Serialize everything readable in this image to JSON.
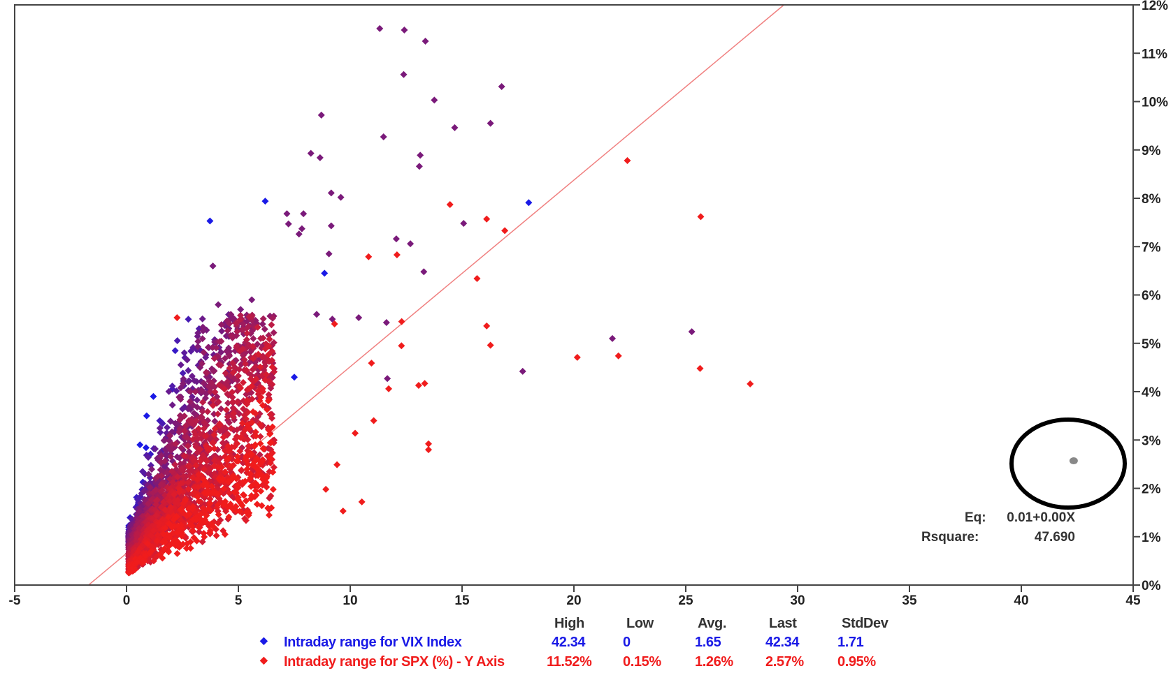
{
  "chart_data": {
    "type": "scatter",
    "title": "",
    "xlabel": "",
    "ylabel": "",
    "xlim": [
      -5,
      45
    ],
    "ylim": [
      0,
      12
    ],
    "x_ticks": [
      "-5",
      "0",
      "5",
      "10",
      "15",
      "20",
      "25",
      "30",
      "35",
      "40",
      "45"
    ],
    "y_ticks": [
      "0%",
      "1%",
      "2%",
      "3%",
      "4%",
      "5%",
      "6%",
      "7%",
      "8%",
      "9%",
      "10%",
      "11%",
      "12%"
    ],
    "y_axis_side": "right",
    "grid": false,
    "colors": {
      "vix": "#1a1ae6",
      "mixed": "#7a1a7a",
      "spx": "#f01c1c",
      "regression": "#f08080",
      "last_point": "#888888",
      "highlight_circle": "#000000"
    },
    "series": [
      {
        "name": "Intraday range for VIX Index",
        "color": "#1a1ae6",
        "points": [
          [
            6.2,
            7.94
          ],
          [
            17.98,
            7.91
          ],
          [
            3.73,
            7.53
          ],
          [
            8.85,
            6.45
          ],
          [
            7.5,
            4.3
          ],
          [
            0.9,
            3.5
          ],
          [
            1.2,
            3.9
          ],
          [
            0.6,
            2.9
          ]
        ]
      },
      {
        "name": "mixed",
        "color": "#7a1a7a",
        "points": [
          [
            11.32,
            11.51
          ],
          [
            12.42,
            11.48
          ],
          [
            13.36,
            11.25
          ],
          [
            12.39,
            10.56
          ],
          [
            13.76,
            10.03
          ],
          [
            16.77,
            10.31
          ],
          [
            8.71,
            9.72
          ],
          [
            16.27,
            9.55
          ],
          [
            14.67,
            9.46
          ],
          [
            11.49,
            9.27
          ],
          [
            8.24,
            8.93
          ],
          [
            8.65,
            8.84
          ],
          [
            13.13,
            8.89
          ],
          [
            13.09,
            8.66
          ],
          [
            9.15,
            8.11
          ],
          [
            9.58,
            8.02
          ],
          [
            7.17,
            7.68
          ],
          [
            7.91,
            7.68
          ],
          [
            7.24,
            7.47
          ],
          [
            7.84,
            7.37
          ],
          [
            7.71,
            7.26
          ],
          [
            9.15,
            7.43
          ],
          [
            15.07,
            7.48
          ],
          [
            12.06,
            7.16
          ],
          [
            12.69,
            7.06
          ],
          [
            9.05,
            6.85
          ],
          [
            3.86,
            6.6
          ],
          [
            13.29,
            6.48
          ],
          [
            10.38,
            5.53
          ],
          [
            11.62,
            5.43
          ],
          [
            17.71,
            4.42
          ],
          [
            21.72,
            5.1
          ],
          [
            25.27,
            5.24
          ],
          [
            11.66,
            4.27
          ],
          [
            5.6,
            5.9
          ],
          [
            5.1,
            5.7
          ],
          [
            4.1,
            5.8
          ],
          [
            8.5,
            5.6
          ],
          [
            9.2,
            5.5
          ]
        ]
      },
      {
        "name": "Intraday range for SPX (%) - Y Axis",
        "color": "#f01c1c",
        "points": [
          [
            22.39,
            8.78
          ],
          [
            25.67,
            7.62
          ],
          [
            14.46,
            7.87
          ],
          [
            16.1,
            7.57
          ],
          [
            16.91,
            7.33
          ],
          [
            10.82,
            6.79
          ],
          [
            12.09,
            6.83
          ],
          [
            15.67,
            6.34
          ],
          [
            16.1,
            5.36
          ],
          [
            16.27,
            4.96
          ],
          [
            20.15,
            4.71
          ],
          [
            21.99,
            4.74
          ],
          [
            25.64,
            4.48
          ],
          [
            27.88,
            4.16
          ],
          [
            12.29,
            4.95
          ],
          [
            10.95,
            4.59
          ],
          [
            13.06,
            4.13
          ],
          [
            13.33,
            4.17
          ],
          [
            13.5,
            2.92
          ],
          [
            13.5,
            2.8
          ],
          [
            10.52,
            1.72
          ],
          [
            9.68,
            1.53
          ],
          [
            8.91,
            1.98
          ],
          [
            9.41,
            2.49
          ],
          [
            10.22,
            3.14
          ],
          [
            11.05,
            3.4
          ],
          [
            11.72,
            4.06
          ],
          [
            2.26,
            5.53
          ],
          [
            9.3,
            5.4
          ],
          [
            12.3,
            5.45
          ]
        ]
      }
    ],
    "last_point": [
      42.34,
      2.57
    ],
    "regression": {
      "intercept_at_y0": -1.7,
      "slope_pct_per_unit": 0.386
    },
    "stats": {
      "headers": [
        "High",
        "Low",
        "Avg.",
        "Last",
        "StdDev"
      ],
      "rows": [
        {
          "label": "Intraday range for VIX Index",
          "values": [
            "42.34",
            "0",
            "1.65",
            "42.34",
            "1.71"
          ]
        },
        {
          "label": "Intraday range for SPX (%) - Y Axis",
          "values": [
            "11.52%",
            "0.15%",
            "1.26%",
            "2.57%",
            "0.95%"
          ]
        }
      ]
    },
    "equation": {
      "eq_label": "Eq:",
      "eq_value": "0.01+0.00X",
      "rsq_label": "Rsquare:",
      "rsq_value": "47.690"
    }
  }
}
